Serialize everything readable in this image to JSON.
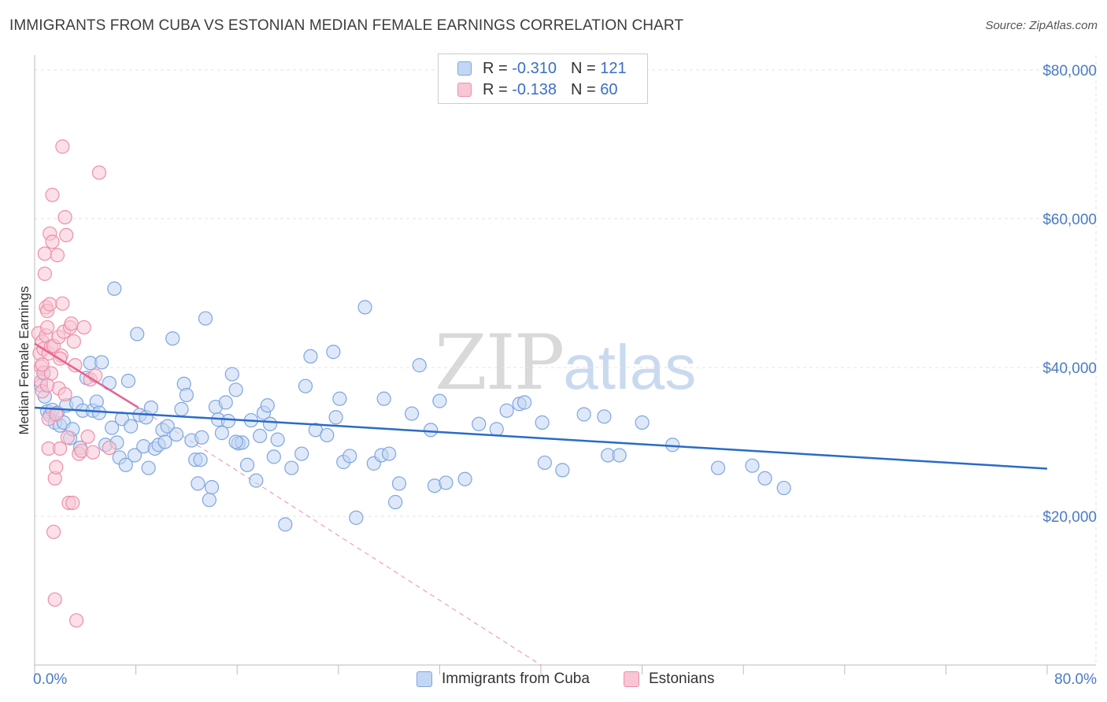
{
  "title": "IMMIGRANTS FROM CUBA VS ESTONIAN MEDIAN FEMALE EARNINGS CORRELATION CHART",
  "source": "Source: ZipAtlas.com",
  "watermark": {
    "part1": "ZIP",
    "part2": "atlas"
  },
  "legend": {
    "rows": [
      {
        "r_label": "R =",
        "r_value": "-0.310",
        "n_label": "N =",
        "n_value": "121"
      },
      {
        "r_label": "R =",
        "r_value": "-0.138",
        "n_label": "N =",
        "n_value": "60"
      }
    ]
  },
  "colors": {
    "blue_fill": "#c3d6f3",
    "blue_stroke": "#7ea6e0",
    "blue_line": "#2a6bc8",
    "pink_fill": "#f8c6d4",
    "pink_stroke": "#ee8eab",
    "pink_line": "#e8628c",
    "grid": "#e3e3e3",
    "axis_text": "#4a7bc4"
  },
  "chart_data": {
    "type": "scatter",
    "title": "IMMIGRANTS FROM CUBA VS ESTONIAN MEDIAN FEMALE EARNINGS CORRELATION CHART",
    "xlabel": "",
    "ylabel": "Median Female Earnings",
    "xlim": [
      0,
      80
    ],
    "ylim": [
      0,
      82000
    ],
    "x_tick_labels": [
      "0.0%",
      "80.0%"
    ],
    "y_ticks": [
      20000,
      40000,
      60000,
      80000
    ],
    "y_tick_labels": [
      "$20,000",
      "$40,000",
      "$60,000",
      "$80,000"
    ],
    "grid": true,
    "series": [
      {
        "name": "Immigrants from Cuba",
        "r": -0.31,
        "n": 121,
        "trend": {
          "x0": 0,
          "y0": 34600,
          "x1": 80,
          "y1": 26400
        },
        "points": [
          [
            0.5,
            37600
          ],
          [
            0.7,
            39200
          ],
          [
            0.8,
            36100
          ],
          [
            1.0,
            34100
          ],
          [
            1.2,
            33600
          ],
          [
            1.4,
            34300
          ],
          [
            1.6,
            32600
          ],
          [
            1.8,
            33900
          ],
          [
            2.0,
            32200
          ],
          [
            2.3,
            32600
          ],
          [
            2.5,
            34900
          ],
          [
            2.8,
            30500
          ],
          [
            3.0,
            31700
          ],
          [
            3.3,
            35200
          ],
          [
            3.6,
            29200
          ],
          [
            3.8,
            34200
          ],
          [
            4.1,
            38600
          ],
          [
            4.4,
            40600
          ],
          [
            4.6,
            34200
          ],
          [
            4.9,
            35400
          ],
          [
            5.1,
            33900
          ],
          [
            5.3,
            40700
          ],
          [
            5.6,
            29600
          ],
          [
            5.9,
            37900
          ],
          [
            6.1,
            31900
          ],
          [
            6.3,
            50600
          ],
          [
            6.5,
            29900
          ],
          [
            6.7,
            27900
          ],
          [
            6.9,
            33100
          ],
          [
            7.2,
            26900
          ],
          [
            7.4,
            38200
          ],
          [
            7.6,
            32100
          ],
          [
            7.9,
            28200
          ],
          [
            8.1,
            44500
          ],
          [
            8.3,
            33600
          ],
          [
            8.6,
            29400
          ],
          [
            8.8,
            33300
          ],
          [
            9.0,
            26500
          ],
          [
            9.2,
            34600
          ],
          [
            9.5,
            29100
          ],
          [
            9.8,
            29600
          ],
          [
            10.1,
            31600
          ],
          [
            10.3,
            30000
          ],
          [
            10.5,
            32100
          ],
          [
            10.9,
            43900
          ],
          [
            11.2,
            31000
          ],
          [
            11.6,
            34400
          ],
          [
            11.8,
            37800
          ],
          [
            12.0,
            36300
          ],
          [
            12.4,
            30200
          ],
          [
            12.7,
            27600
          ],
          [
            12.9,
            24400
          ],
          [
            13.2,
            30600
          ],
          [
            13.5,
            46600
          ],
          [
            13.8,
            22200
          ],
          [
            14.0,
            23900
          ],
          [
            14.3,
            34700
          ],
          [
            14.5,
            33000
          ],
          [
            14.8,
            31200
          ],
          [
            15.1,
            35300
          ],
          [
            15.3,
            32800
          ],
          [
            15.6,
            39100
          ],
          [
            15.9,
            37000
          ],
          [
            16.1,
            29800
          ],
          [
            16.4,
            29900
          ],
          [
            16.8,
            26900
          ],
          [
            17.1,
            32900
          ],
          [
            17.5,
            24800
          ],
          [
            17.8,
            30800
          ],
          [
            18.1,
            33900
          ],
          [
            18.4,
            34900
          ],
          [
            18.6,
            32400
          ],
          [
            18.9,
            28000
          ],
          [
            19.2,
            30300
          ],
          [
            19.8,
            18900
          ],
          [
            20.3,
            26500
          ],
          [
            21.1,
            28400
          ],
          [
            21.4,
            37500
          ],
          [
            21.8,
            41500
          ],
          [
            22.2,
            31600
          ],
          [
            23.1,
            30900
          ],
          [
            23.6,
            42100
          ],
          [
            23.8,
            33300
          ],
          [
            24.1,
            35800
          ],
          [
            24.4,
            27300
          ],
          [
            24.9,
            28100
          ],
          [
            25.4,
            19800
          ],
          [
            26.1,
            48100
          ],
          [
            26.8,
            27100
          ],
          [
            27.4,
            28200
          ],
          [
            27.6,
            35800
          ],
          [
            28.0,
            28400
          ],
          [
            28.5,
            21900
          ],
          [
            28.8,
            24400
          ],
          [
            29.8,
            33800
          ],
          [
            30.4,
            40300
          ],
          [
            31.3,
            31600
          ],
          [
            31.6,
            24100
          ],
          [
            32.0,
            35500
          ],
          [
            32.5,
            24500
          ],
          [
            34.0,
            25000
          ],
          [
            35.1,
            32400
          ],
          [
            36.5,
            31700
          ],
          [
            37.3,
            34200
          ],
          [
            38.3,
            35100
          ],
          [
            38.7,
            35300
          ],
          [
            40.1,
            32600
          ],
          [
            40.3,
            27200
          ],
          [
            41.7,
            26200
          ],
          [
            43.4,
            33700
          ],
          [
            45.0,
            33400
          ],
          [
            45.3,
            28200
          ],
          [
            46.2,
            28200
          ],
          [
            48.0,
            32600
          ],
          [
            50.4,
            29600
          ],
          [
            54.0,
            26500
          ],
          [
            56.7,
            26800
          ],
          [
            57.7,
            25100
          ],
          [
            59.2,
            23800
          ],
          [
            15.9,
            30000
          ],
          [
            13.1,
            27600
          ]
        ]
      },
      {
        "name": "Estonians",
        "r": -0.138,
        "n": 60,
        "trend": {
          "x0": 0,
          "y0": 43200,
          "x1": 8.2,
          "y1": 34600
        },
        "trend_ext": {
          "x0": 8.2,
          "y0": 34600,
          "x1": 40.0,
          "y1": 0
        },
        "points": [
          [
            0.3,
            44600
          ],
          [
            0.4,
            41900
          ],
          [
            0.5,
            40100
          ],
          [
            0.5,
            38100
          ],
          [
            0.6,
            36800
          ],
          [
            0.6,
            43500
          ],
          [
            0.7,
            42500
          ],
          [
            0.7,
            39300
          ],
          [
            0.8,
            55300
          ],
          [
            0.8,
            52600
          ],
          [
            0.9,
            48100
          ],
          [
            0.9,
            44300
          ],
          [
            1.0,
            47600
          ],
          [
            1.0,
            45400
          ],
          [
            1.1,
            41900
          ],
          [
            1.1,
            29100
          ],
          [
            1.1,
            33100
          ],
          [
            1.2,
            58000
          ],
          [
            1.2,
            48500
          ],
          [
            1.3,
            42800
          ],
          [
            1.3,
            39200
          ],
          [
            1.4,
            56900
          ],
          [
            1.4,
            63200
          ],
          [
            1.5,
            42900
          ],
          [
            1.5,
            17900
          ],
          [
            1.6,
            8800
          ],
          [
            1.6,
            25100
          ],
          [
            1.7,
            26600
          ],
          [
            1.7,
            33700
          ],
          [
            1.8,
            55100
          ],
          [
            1.9,
            44100
          ],
          [
            1.9,
            37200
          ],
          [
            2.0,
            29100
          ],
          [
            2.1,
            41600
          ],
          [
            2.2,
            48600
          ],
          [
            2.2,
            69700
          ],
          [
            2.3,
            44800
          ],
          [
            2.4,
            36400
          ],
          [
            2.4,
            60200
          ],
          [
            2.5,
            57800
          ],
          [
            2.6,
            30600
          ],
          [
            2.7,
            21800
          ],
          [
            2.8,
            45400
          ],
          [
            2.9,
            45900
          ],
          [
            3.0,
            21800
          ],
          [
            3.1,
            43500
          ],
          [
            3.2,
            40300
          ],
          [
            3.3,
            6000
          ],
          [
            3.5,
            28400
          ],
          [
            3.7,
            28800
          ],
          [
            3.9,
            45400
          ],
          [
            4.2,
            30700
          ],
          [
            4.4,
            38400
          ],
          [
            4.6,
            28600
          ],
          [
            4.8,
            38900
          ],
          [
            5.1,
            66200
          ],
          [
            5.9,
            29200
          ],
          [
            0.6,
            40400
          ],
          [
            1.0,
            37600
          ],
          [
            2.0,
            41200
          ]
        ]
      }
    ]
  },
  "bottom_legend": [
    {
      "label": "Immigrants from Cuba"
    },
    {
      "label": "Estonians"
    }
  ]
}
